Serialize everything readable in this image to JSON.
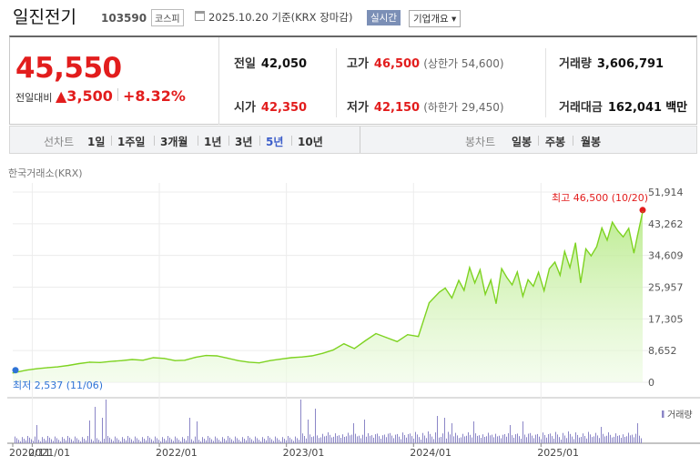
{
  "header": {
    "stock_name": "일진전기",
    "stock_code": "103590",
    "market_badge": "코스피",
    "date_text": "2025.10.20  기준(KRX 장마감)",
    "realtime_button": "실시간",
    "overview_button": "기업개요 ▾"
  },
  "quote": {
    "price": "45,550",
    "change_label": "전일대비",
    "change": "▲3,500",
    "change_pct": "+8.32%",
    "prev_close_label": "전일",
    "prev_close": "42,050",
    "high_label": "고가",
    "high": "46,500",
    "upper_limit": "(상한가 54,600)",
    "volume_label": "거래량",
    "volume": "3,606,791",
    "open_label": "시가",
    "open": "42,350",
    "low_label": "저가",
    "low": "42,150",
    "lower_limit": "(하한가 29,450)",
    "amount_label": "거래대금",
    "amount": "162,041",
    "amount_unit": "백만"
  },
  "period_bar": {
    "line_label": "선차트",
    "periods": [
      "1일",
      "1주일",
      "3개월",
      "1년",
      "3년",
      "5년",
      "10년"
    ],
    "selected_period": "5년",
    "candle_label": "봉차트",
    "candles": [
      "일봉",
      "주봉",
      "월봉"
    ]
  },
  "source_label": "한국거래소(KRX)",
  "colors": {
    "up": "#e21d1d",
    "accent": "#3b5dc9",
    "line": "#7ed321",
    "volume": "#8b86c7"
  },
  "chart_data": {
    "type": "area",
    "ylim": [
      0,
      51914
    ],
    "y_ticks": [
      "51,914",
      "43,262",
      "34,609",
      "25,957",
      "17,305",
      "8,652",
      "0"
    ],
    "x_ticks": [
      "2020/11",
      "2021/01",
      "2022/01",
      "2023/01",
      "2024/01",
      "2025/01"
    ],
    "max_annotation": "최고  46,500 (10/20)",
    "min_annotation": "최저  2,537 (11/06)",
    "volume_label": "거래량",
    "series": [
      {
        "x": [
          "2020-11-06",
          "2020-12-15",
          "2021-01-15",
          "2021-02-15",
          "2021-03-15",
          "2021-04-15",
          "2021-05-15",
          "2021-06-15",
          "2021-07-15",
          "2021-08-15",
          "2021-09-15",
          "2021-10-15",
          "2021-11-15",
          "2021-12-15",
          "2022-01-15",
          "2022-02-15",
          "2022-03-15",
          "2022-04-15",
          "2022-05-15",
          "2022-06-15",
          "2022-07-15",
          "2022-08-15",
          "2022-09-15",
          "2022-10-15",
          "2022-11-15",
          "2022-12-15",
          "2023-01-15",
          "2023-02-15",
          "2023-03-15",
          "2023-04-15",
          "2023-05-15",
          "2023-06-15",
          "2023-07-15",
          "2023-08-15",
          "2023-09-15",
          "2023-10-15",
          "2023-11-15",
          "2023-12-15",
          "2024-01-15",
          "2024-02-15",
          "2024-03-15",
          "2024-04-01",
          "2024-04-20",
          "2024-05-10",
          "2024-05-25",
          "2024-06-10",
          "2024-06-25",
          "2024-07-10",
          "2024-07-25",
          "2024-08-10",
          "2024-08-25",
          "2024-09-10",
          "2024-09-25",
          "2024-10-10",
          "2024-10-25",
          "2024-11-10",
          "2024-11-25",
          "2024-12-10",
          "2024-12-25",
          "2025-01-10",
          "2025-01-25",
          "2025-02-10",
          "2025-02-25",
          "2025-03-10",
          "2025-03-25",
          "2025-04-10",
          "2025-04-25",
          "2025-05-10",
          "2025-05-25",
          "2025-06-10",
          "2025-06-25",
          "2025-07-10",
          "2025-07-25",
          "2025-08-10",
          "2025-08-25",
          "2025-09-10",
          "2025-09-25",
          "2025-10-05",
          "2025-10-20"
        ],
        "values": [
          2537,
          3300,
          3700,
          4000,
          4200,
          4600,
          5100,
          5500,
          5400,
          5700,
          5900,
          6200,
          6000,
          6700,
          6500,
          5900,
          6000,
          6800,
          7300,
          7200,
          6600,
          5900,
          5500,
          5300,
          5900,
          6300,
          6700,
          6900,
          7200,
          7900,
          8800,
          10500,
          9200,
          11300,
          13300,
          12200,
          11100,
          13000,
          12500,
          21700,
          24600,
          25700,
          23000,
          27800,
          25100,
          31300,
          27100,
          30700,
          24000,
          27900,
          21500,
          31000,
          28600,
          26600,
          30100,
          23500,
          28000,
          26200,
          30000,
          25000,
          31000,
          32800,
          29200,
          35700,
          31300,
          38000,
          27200,
          36400,
          34500,
          37000,
          42100,
          38800,
          43700,
          41300,
          39700,
          42000,
          35300,
          40000,
          46500
        ]
      }
    ]
  }
}
